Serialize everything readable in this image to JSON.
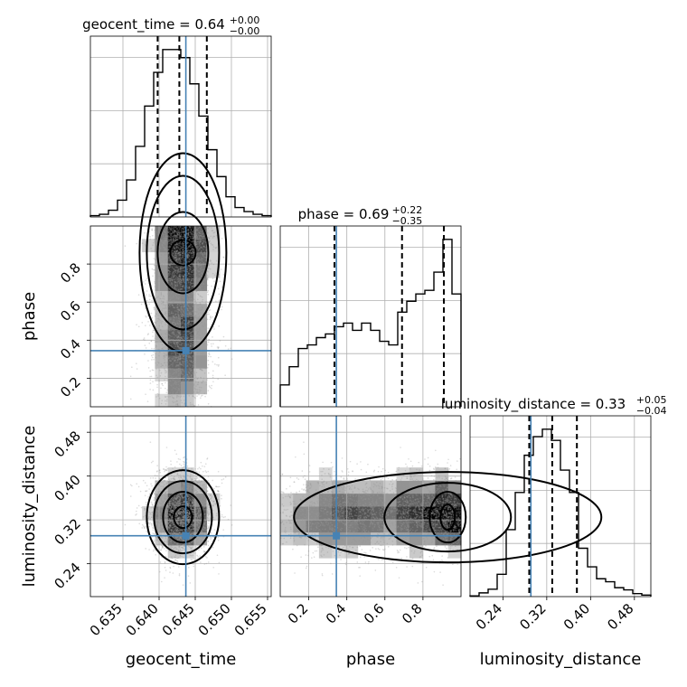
{
  "chart_data": {
    "type": "corner",
    "parameters": [
      "geocent_time",
      "phase",
      "luminosity_distance"
    ],
    "truth": {
      "geocent_time": 0.6437,
      "phase": 0.345,
      "luminosity_distance": 0.291
    },
    "colors": {
      "truth": "#4682b4",
      "hist": "#000000",
      "grid": "#b0b0b0",
      "samples": "#999999"
    },
    "panels": {
      "geocent_time": {
        "title": "geocent_time = 0.64",
        "title_sup": "+0.00",
        "title_sub": "−0.00",
        "xlim": [
          0.6305,
          0.6555
        ],
        "xticks": [
          0.635,
          0.64,
          0.645,
          0.65,
          0.655
        ],
        "xtick_labels": [
          "0.635",
          "0.640",
          "0.645",
          "0.650",
          "0.655"
        ],
        "xlabel": "geocent_time",
        "quantiles": [
          0.6398,
          0.6428,
          0.6466
        ],
        "hist_edges": [
          0.6305,
          0.63175,
          0.633,
          0.63425,
          0.6355,
          0.63675,
          0.638,
          0.63925,
          0.6405,
          0.64175,
          0.643,
          0.64425,
          0.6455,
          0.64675,
          0.648,
          0.64925,
          0.6505,
          0.65175,
          0.653,
          0.65425,
          0.6555
        ],
        "hist_counts": [
          2,
          4,
          10,
          25,
          55,
          105,
          165,
          215,
          249,
          249,
          237,
          198,
          150,
          100,
          60,
          30,
          14,
          8,
          4,
          2
        ]
      },
      "phase": {
        "title": "phase = 0.69",
        "title_sup": "+0.22",
        "title_sub": "−0.35",
        "xlim": [
          0.05,
          1.0
        ],
        "xticks": [
          0.2,
          0.4,
          0.6,
          0.8
        ],
        "xtick_labels": [
          "0.2",
          "0.4",
          "0.6",
          "0.8"
        ],
        "ylabel": "phase",
        "yticks": [
          0.2,
          0.4,
          0.6,
          0.8
        ],
        "ytick_labels": [
          "0.2",
          "0.4",
          "0.6",
          "0.8"
        ],
        "xlabel": "phase",
        "quantiles": [
          0.335,
          0.69,
          0.91
        ],
        "hist_edges": [
          0.05,
          0.0975,
          0.145,
          0.1925,
          0.24,
          0.2875,
          0.335,
          0.3825,
          0.43,
          0.4775,
          0.525,
          0.5725,
          0.62,
          0.6675,
          0.715,
          0.7625,
          0.81,
          0.8575,
          0.905,
          0.9525,
          1.0
        ],
        "hist_counts": [
          30,
          55,
          80,
          85,
          95,
          100,
          110,
          115,
          105,
          115,
          105,
          90,
          85,
          130,
          145,
          155,
          160,
          185,
          230,
          155
        ]
      },
      "luminosity_distance": {
        "title": "luminosity_distance = 0.33",
        "title_sup": "+0.05",
        "title_sub": "−0.04",
        "xlim": [
          0.18,
          0.51
        ],
        "xticks": [
          0.24,
          0.32,
          0.4,
          0.48
        ],
        "xtick_labels": [
          "0.24",
          "0.32",
          "0.40",
          "0.48"
        ],
        "ylabel": "luminosity_distance",
        "yticks": [
          0.24,
          0.32,
          0.4,
          0.48
        ],
        "ytick_labels": [
          "0.24",
          "0.32",
          "0.40",
          "0.48"
        ],
        "xlabel": "luminosity_distance",
        "quantiles": [
          0.288,
          0.33,
          0.375
        ],
        "hist_edges": [
          0.18,
          0.1965,
          0.213,
          0.2295,
          0.246,
          0.2625,
          0.279,
          0.2955,
          0.312,
          0.3285,
          0.345,
          0.3615,
          0.378,
          0.3945,
          0.411,
          0.4275,
          0.444,
          0.4605,
          0.477,
          0.4935,
          0.51
        ],
        "hist_counts": [
          1,
          5,
          10,
          30,
          90,
          140,
          190,
          215,
          225,
          210,
          170,
          140,
          65,
          40,
          24,
          20,
          12,
          9,
          4,
          2
        ]
      }
    }
  }
}
